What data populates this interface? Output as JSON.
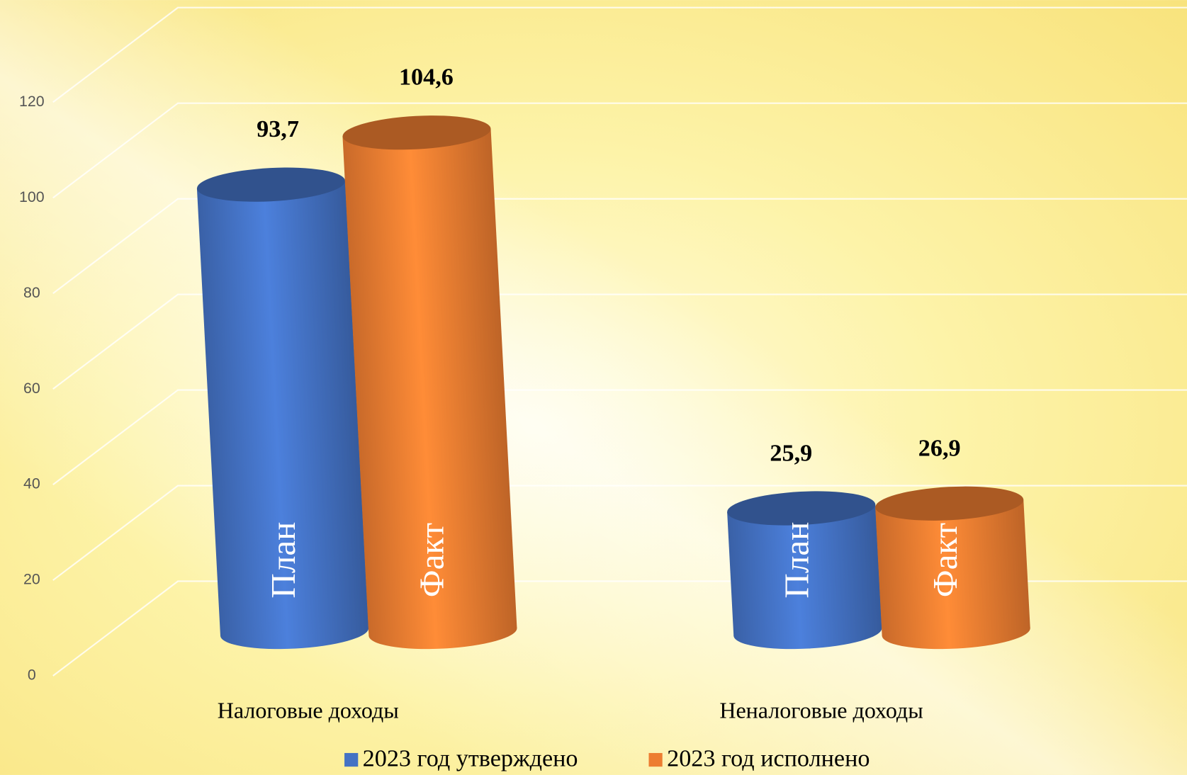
{
  "chart_data": {
    "type": "bar3d",
    "categories": [
      "Налоговые доходы",
      "Неналоговые доходы"
    ],
    "series": [
      {
        "name": "2023 год утверждено",
        "color": "#4472c4",
        "inner_label": "План",
        "values": [
          93.7,
          25.9
        ],
        "value_labels": [
          "93,7",
          "25,9"
        ]
      },
      {
        "name": "2023 год исполнено",
        "color": "#ed7d31",
        "inner_label": "Факт",
        "values": [
          104.6,
          26.9
        ],
        "value_labels": [
          "104,6",
          "26,9"
        ]
      }
    ],
    "ylim": [
      0,
      120
    ],
    "yticks": [
      0,
      20,
      40,
      60,
      80,
      100,
      120
    ],
    "grid": true,
    "legend": "bottom"
  }
}
